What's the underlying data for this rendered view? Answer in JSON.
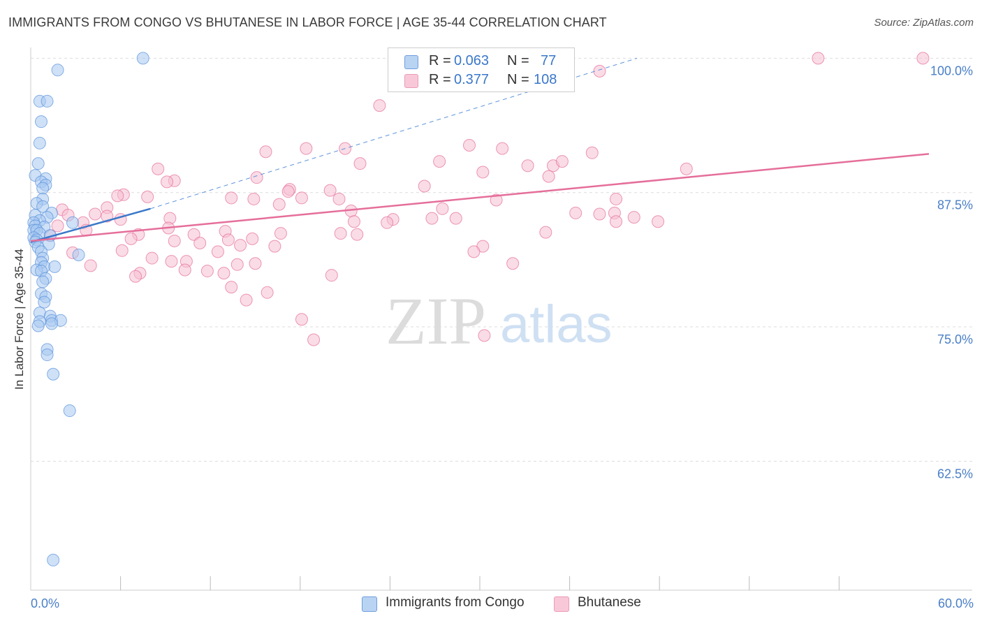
{
  "title": "IMMIGRANTS FROM CONGO VS BHUTANESE IN LABOR FORCE | AGE 35-44 CORRELATION CHART",
  "source": "Source: ZipAtlas.com",
  "watermark": {
    "zip": "ZIP",
    "atlas": "atlas"
  },
  "legend_top": {
    "rows": [
      {
        "series": "Immigrants from Congo",
        "r_key": "R =",
        "r_value": "0.063",
        "n_key": "N =",
        "n_value": "77",
        "color": "#8fb8ea"
      },
      {
        "series": "Bhutanese",
        "r_key": "R =",
        "r_value": "0.377",
        "n_key": "N =",
        "n_value": "108",
        "color": "#f4a9c2"
      }
    ]
  },
  "chart_data": {
    "type": "scatter",
    "title": "IMMIGRANTS FROM CONGO VS BHUTANESE IN LABOR FORCE | AGE 35-44 CORRELATION CHART",
    "xlabel": "",
    "ylabel": "In Labor Force | Age 35-44",
    "xlim": [
      0,
      60
    ],
    "ylim": [
      50.5,
      101
    ],
    "x_tick_labels": [
      {
        "value": 0,
        "label": "0.0%"
      },
      {
        "value": 60,
        "label": "60.0%"
      }
    ],
    "y_ticks": [
      {
        "value": 62.5,
        "label": "62.5%"
      },
      {
        "value": 75,
        "label": "75.0%"
      },
      {
        "value": 87.5,
        "label": "87.5%"
      },
      {
        "value": 100,
        "label": "100.0%"
      }
    ],
    "x_minor_ticks": [
      6,
      12,
      18,
      24,
      30,
      36,
      42,
      48,
      54
    ],
    "series": [
      {
        "name": "Immigrants from Congo",
        "color": "#5a91db",
        "fill": "#a8c8f0",
        "trend": {
          "x0": 0,
          "y0": 82.9,
          "x1": 8,
          "y1": 86.0,
          "dash_x1": 40.5,
          "dash_y1": 100.0
        },
        "points": [
          [
            7.5,
            100.0
          ],
          [
            1.8,
            98.9
          ],
          [
            0.6,
            96.0
          ],
          [
            1.1,
            96.0
          ],
          [
            0.7,
            94.1
          ],
          [
            0.6,
            92.1
          ],
          [
            0.5,
            90.2
          ],
          [
            0.3,
            89.1
          ],
          [
            1.0,
            88.8
          ],
          [
            0.7,
            88.5
          ],
          [
            1.0,
            88.2
          ],
          [
            0.8,
            87.9
          ],
          [
            0.8,
            86.9
          ],
          [
            0.4,
            86.5
          ],
          [
            0.8,
            86.2
          ],
          [
            1.4,
            85.6
          ],
          [
            0.3,
            85.4
          ],
          [
            1.1,
            85.2
          ],
          [
            0.6,
            84.9
          ],
          [
            0.2,
            84.7
          ],
          [
            0.3,
            84.4
          ],
          [
            0.9,
            84.3
          ],
          [
            2.8,
            84.7
          ],
          [
            0.2,
            84.0
          ],
          [
            0.4,
            84.0
          ],
          [
            0.6,
            83.7
          ],
          [
            1.3,
            83.5
          ],
          [
            0.2,
            83.3
          ],
          [
            0.4,
            83.1
          ],
          [
            0.3,
            82.9
          ],
          [
            1.2,
            82.7
          ],
          [
            0.5,
            82.4
          ],
          [
            0.7,
            82.0
          ],
          [
            3.2,
            81.7
          ],
          [
            0.8,
            81.4
          ],
          [
            0.7,
            81.0
          ],
          [
            0.9,
            80.6
          ],
          [
            1.6,
            80.6
          ],
          [
            0.4,
            80.3
          ],
          [
            0.7,
            80.2
          ],
          [
            1.0,
            79.5
          ],
          [
            0.8,
            79.2
          ],
          [
            0.7,
            78.1
          ],
          [
            1.0,
            77.8
          ],
          [
            0.9,
            77.3
          ],
          [
            0.6,
            76.3
          ],
          [
            1.3,
            76.0
          ],
          [
            0.6,
            75.5
          ],
          [
            1.4,
            75.6
          ],
          [
            2.0,
            75.6
          ],
          [
            1.4,
            75.3
          ],
          [
            0.5,
            75.1
          ],
          [
            1.1,
            72.9
          ],
          [
            1.1,
            72.4
          ],
          [
            1.5,
            70.6
          ],
          [
            2.6,
            67.2
          ],
          [
            1.5,
            53.3
          ]
        ]
      },
      {
        "name": "Bhutanese",
        "color": "#e56e9a",
        "fill": "#f6bfd2",
        "trend": {
          "x0": 0,
          "y0": 83.0,
          "x1": 60,
          "y1": 91.1
        },
        "points": [
          [
            52.6,
            100.0
          ],
          [
            59.6,
            100.0
          ],
          [
            38.0,
            98.8
          ],
          [
            23.3,
            95.6
          ],
          [
            29.3,
            91.9
          ],
          [
            31.5,
            91.6
          ],
          [
            37.5,
            91.2
          ],
          [
            15.7,
            91.3
          ],
          [
            18.4,
            91.6
          ],
          [
            21.0,
            91.6
          ],
          [
            22.0,
            90.2
          ],
          [
            27.3,
            90.4
          ],
          [
            33.2,
            90.0
          ],
          [
            34.9,
            90.0
          ],
          [
            35.5,
            90.4
          ],
          [
            34.6,
            89.0
          ],
          [
            8.5,
            89.7
          ],
          [
            30.2,
            89.4
          ],
          [
            43.8,
            89.7
          ],
          [
            15.1,
            88.9
          ],
          [
            9.6,
            88.6
          ],
          [
            9.1,
            88.5
          ],
          [
            17.3,
            87.8
          ],
          [
            17.2,
            87.6
          ],
          [
            20.0,
            87.7
          ],
          [
            26.3,
            88.1
          ],
          [
            6.2,
            87.3
          ],
          [
            5.8,
            87.2
          ],
          [
            7.8,
            87.1
          ],
          [
            13.4,
            87.0
          ],
          [
            14.9,
            86.9
          ],
          [
            18.1,
            87.0
          ],
          [
            20.6,
            86.9
          ],
          [
            31.1,
            86.8
          ],
          [
            39.1,
            86.9
          ],
          [
            16.6,
            86.4
          ],
          [
            2.1,
            85.9
          ],
          [
            5.1,
            86.1
          ],
          [
            27.5,
            86.0
          ],
          [
            21.4,
            85.8
          ],
          [
            2.5,
            85.4
          ],
          [
            4.3,
            85.5
          ],
          [
            36.4,
            85.6
          ],
          [
            38.0,
            85.5
          ],
          [
            39.0,
            85.6
          ],
          [
            5.1,
            85.3
          ],
          [
            6.0,
            85.0
          ],
          [
            9.3,
            85.1
          ],
          [
            24.2,
            85.0
          ],
          [
            26.8,
            85.1
          ],
          [
            28.4,
            85.1
          ],
          [
            40.3,
            85.2
          ],
          [
            3.5,
            84.7
          ],
          [
            21.6,
            84.8
          ],
          [
            23.8,
            84.7
          ],
          [
            39.1,
            84.8
          ],
          [
            41.9,
            84.8
          ],
          [
            1.8,
            84.4
          ],
          [
            9.2,
            84.2
          ],
          [
            3.7,
            84.0
          ],
          [
            13.0,
            83.9
          ],
          [
            16.7,
            83.7
          ],
          [
            20.7,
            83.7
          ],
          [
            34.4,
            83.8
          ],
          [
            1.3,
            83.5
          ],
          [
            7.2,
            83.6
          ],
          [
            10.9,
            83.6
          ],
          [
            21.8,
            83.6
          ],
          [
            13.2,
            83.1
          ],
          [
            14.8,
            83.2
          ],
          [
            6.7,
            83.2
          ],
          [
            9.6,
            83.0
          ],
          [
            11.3,
            82.8
          ],
          [
            14.0,
            82.6
          ],
          [
            16.3,
            82.5
          ],
          [
            30.2,
            82.5
          ],
          [
            6.1,
            82.1
          ],
          [
            12.5,
            82.0
          ],
          [
            29.6,
            82.0
          ],
          [
            2.8,
            81.9
          ],
          [
            8.1,
            81.4
          ],
          [
            9.4,
            81.1
          ],
          [
            10.4,
            81.1
          ],
          [
            15.0,
            80.9
          ],
          [
            32.2,
            80.9
          ],
          [
            13.8,
            80.8
          ],
          [
            4.0,
            80.7
          ],
          [
            10.3,
            80.3
          ],
          [
            11.8,
            80.2
          ],
          [
            7.3,
            80.0
          ],
          [
            12.9,
            80.0
          ],
          [
            7.0,
            79.7
          ],
          [
            20.1,
            79.8
          ],
          [
            13.4,
            78.7
          ],
          [
            15.8,
            78.2
          ],
          [
            14.4,
            77.5
          ],
          [
            18.1,
            75.7
          ],
          [
            18.9,
            73.8
          ],
          [
            30.3,
            74.2
          ]
        ]
      }
    ]
  }
}
